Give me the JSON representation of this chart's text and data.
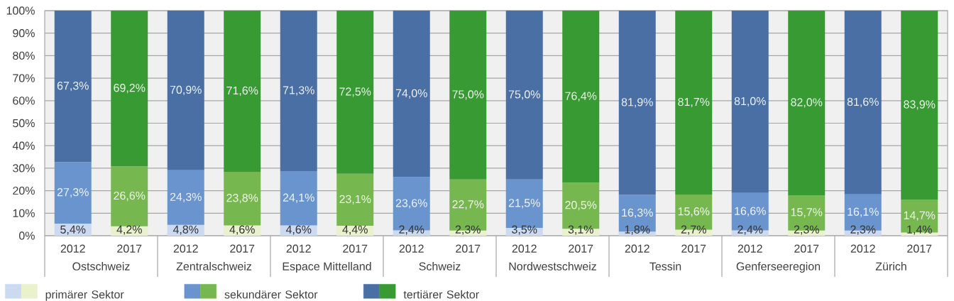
{
  "chart_data": {
    "type": "bar",
    "stacked": true,
    "categories": [
      "2012",
      "2017",
      "2012",
      "2017",
      "2012",
      "2017",
      "2012",
      "2017",
      "2012",
      "2017",
      "2012",
      "2017",
      "2012",
      "2017",
      "2012",
      "2017"
    ],
    "series": [
      {
        "name": "primärer Sektor",
        "colors": [
          "#cbd9f1",
          "#e9f1cd",
          "#cbd9f1",
          "#e9f1cd",
          "#cbd9f1",
          "#e9f1cd",
          "#cbd9f1",
          "#e9f1cd",
          "#cbd9f1",
          "#e9f1cd",
          "#cbd9f1",
          "#e9f1cd",
          "#cbd9f1",
          "#e9f1cd",
          "#cbd9f1",
          "#e9f1cd"
        ],
        "values": [
          5.4,
          4.2,
          4.8,
          4.6,
          4.6,
          4.4,
          2.4,
          2.3,
          3.5,
          3.1,
          1.8,
          2.7,
          2.4,
          2.3,
          2.3,
          1.4
        ],
        "value_labels": [
          "5,4%",
          "4,2%",
          "4,8%",
          "4,6%",
          "4,6%",
          "4,4%",
          "2,4%",
          "2,3%",
          "3,5%",
          "3,1%",
          "1,8%",
          "2,7%",
          "2,4%",
          "2,3%",
          "2,3%",
          "1,4%"
        ]
      },
      {
        "name": "sekundärer Sektor",
        "colors": [
          "#6a94cd",
          "#77b74f",
          "#6a94cd",
          "#77b74f",
          "#6a94cd",
          "#77b74f",
          "#6a94cd",
          "#77b74f",
          "#6a94cd",
          "#77b74f",
          "#6a94cd",
          "#77b74f",
          "#6a94cd",
          "#77b74f",
          "#6a94cd",
          "#77b74f"
        ],
        "values": [
          27.3,
          26.6,
          24.3,
          23.8,
          24.1,
          23.1,
          23.6,
          22.7,
          21.5,
          20.5,
          16.3,
          15.6,
          16.6,
          15.7,
          16.1,
          14.7
        ],
        "value_labels": [
          "27,3%",
          "26,6%",
          "24,3%",
          "23,8%",
          "24,1%",
          "23,1%",
          "23,6%",
          "22,7%",
          "21,5%",
          "20,5%",
          "16,3%",
          "15,6%",
          "16,6%",
          "15,7%",
          "16,1%",
          "14,7%"
        ]
      },
      {
        "name": "tertiärer Sektor",
        "colors": [
          "#4a6fa5",
          "#389a33",
          "#4a6fa5",
          "#389a33",
          "#4a6fa5",
          "#389a33",
          "#4a6fa5",
          "#389a33",
          "#4a6fa5",
          "#389a33",
          "#4a6fa5",
          "#389a33",
          "#4a6fa5",
          "#389a33",
          "#4a6fa5",
          "#389a33"
        ],
        "values": [
          67.3,
          69.2,
          70.9,
          71.6,
          71.3,
          72.5,
          74.0,
          75.0,
          75.0,
          76.4,
          81.9,
          81.7,
          81.0,
          82.0,
          81.6,
          83.9
        ],
        "value_labels": [
          "67,3%",
          "69,2%",
          "70,9%",
          "71,6%",
          "71,3%",
          "72,5%",
          "74,0%",
          "75,0%",
          "75,0%",
          "76,4%",
          "81,9%",
          "81,7%",
          "81,0%",
          "82,0%",
          "81,6%",
          "83,9%"
        ]
      }
    ],
    "ylim": [
      0,
      100
    ],
    "yticks": [
      {
        "value": 0,
        "label": "0%"
      },
      {
        "value": 10,
        "label": "10%"
      },
      {
        "value": 20,
        "label": "20%"
      },
      {
        "value": 30,
        "label": "30%"
      },
      {
        "value": 40,
        "label": "40%"
      },
      {
        "value": 50,
        "label": "50%"
      },
      {
        "value": 60,
        "label": "60%"
      },
      {
        "value": 70,
        "label": "70%"
      },
      {
        "value": 80,
        "label": "80%"
      },
      {
        "value": 90,
        "label": "90%"
      },
      {
        "value": 100,
        "label": "100%"
      }
    ],
    "grid": "y",
    "legend": "bottom",
    "annotations": [
      "Ostschweiz",
      "Zentralschweiz",
      "Espace Mittelland",
      "Schweiz",
      "Nordwestschweiz",
      "Tessin",
      "Genferseeregion",
      "Zürich"
    ]
  }
}
